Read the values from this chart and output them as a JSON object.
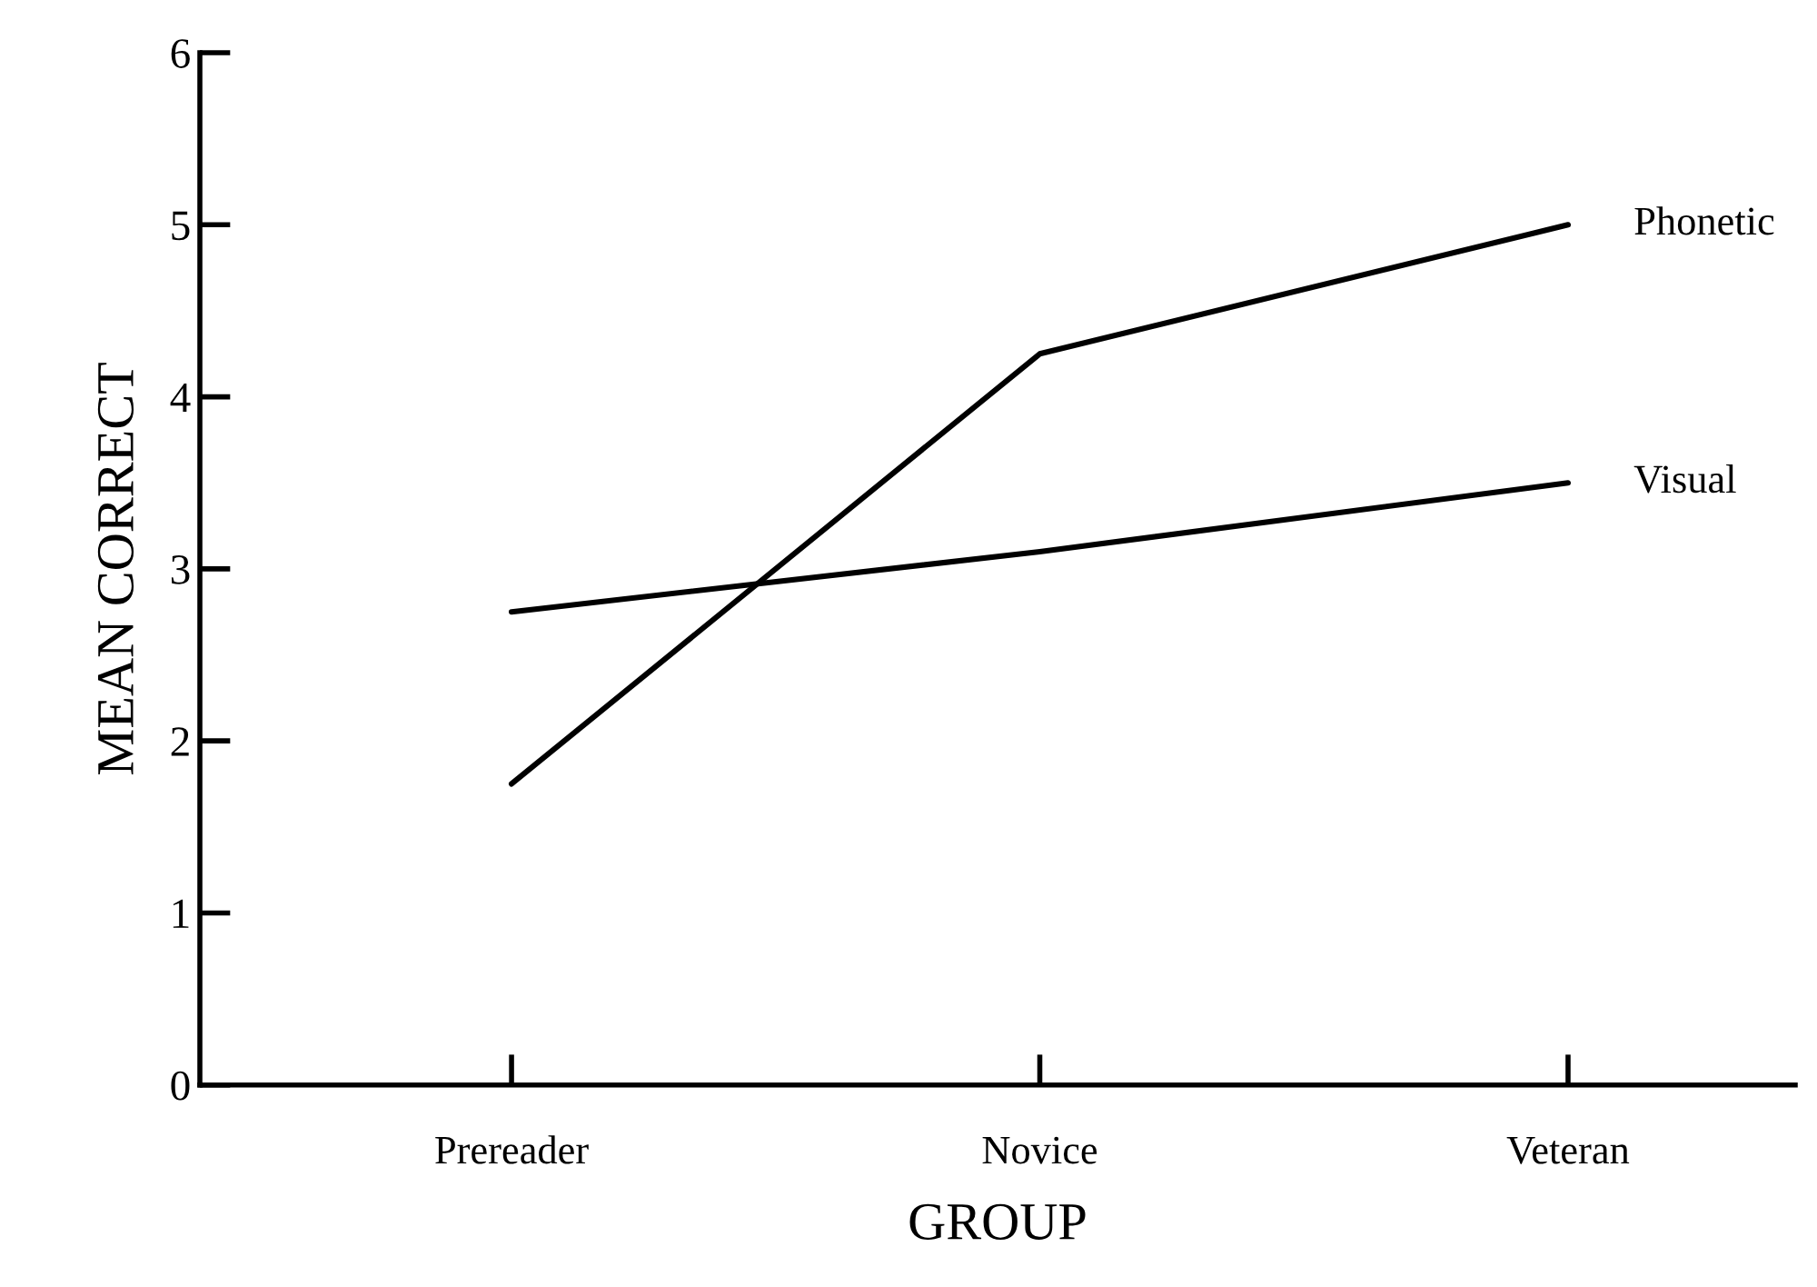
{
  "chart_data": {
    "type": "line",
    "xlabel": "GROUP",
    "ylabel": "MEAN CORRECT",
    "categories": [
      "Prereader",
      "Novice",
      "Veteran"
    ],
    "series": [
      {
        "name": "Phonetic",
        "color": "#000000",
        "values": [
          1.75,
          4.25,
          5.0
        ]
      },
      {
        "name": "Visual",
        "color": "#000000",
        "values": [
          2.75,
          3.1,
          3.5
        ]
      }
    ],
    "ylim": [
      0,
      6
    ],
    "yticks": [
      0,
      1,
      2,
      3,
      4,
      5,
      6
    ],
    "grid": false,
    "legend": false,
    "marker": "none",
    "line_style": "solid"
  }
}
